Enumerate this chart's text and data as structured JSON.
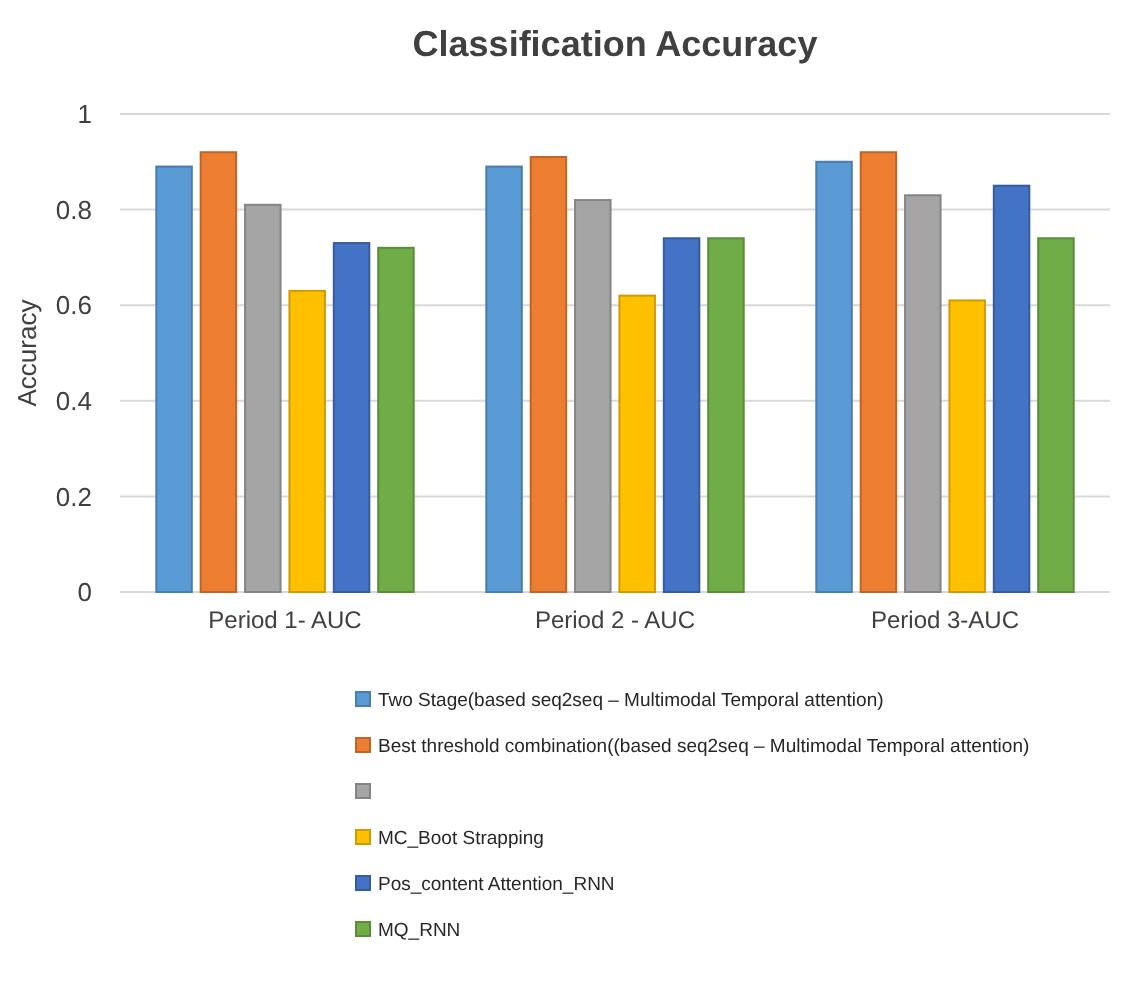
{
  "chart_data": {
    "type": "bar",
    "title": "Classification Accuracy",
    "ylabel": "Accuracy",
    "categories": [
      "Period 1- AUC",
      "Period 2 - AUC",
      "Period 3-AUC"
    ],
    "series": [
      {
        "name": "Two Stage(based seq2seq – Multimodal Temporal attention)",
        "color": "#5b9bd5",
        "values": [
          0.89,
          0.89,
          0.9
        ]
      },
      {
        "name": "Best threshold combination((based seq2seq – Multimodal Temporal attention)",
        "color": "#ed7d31",
        "values": [
          0.92,
          0.91,
          0.92
        ]
      },
      {
        "color": "#a5a5a5",
        "values": [
          0.81,
          0.82,
          0.83
        ]
      },
      {
        "name": "MC_Boot Strapping",
        "color": "#ffc000",
        "values": [
          0.63,
          0.62,
          0.61
        ]
      },
      {
        "name": "Pos_content Attention_RNN",
        "color": "#4472c4",
        "values": [
          0.73,
          0.74,
          0.85
        ]
      },
      {
        "name": "MQ_RNN",
        "color": "#70ad47",
        "values": [
          0.72,
          0.74,
          0.74
        ]
      }
    ],
    "ylim": [
      0,
      1
    ],
    "yticks": [
      0,
      0.2,
      0.4,
      0.6,
      0.8,
      1
    ],
    "grid": "y",
    "legend": "bottom"
  }
}
